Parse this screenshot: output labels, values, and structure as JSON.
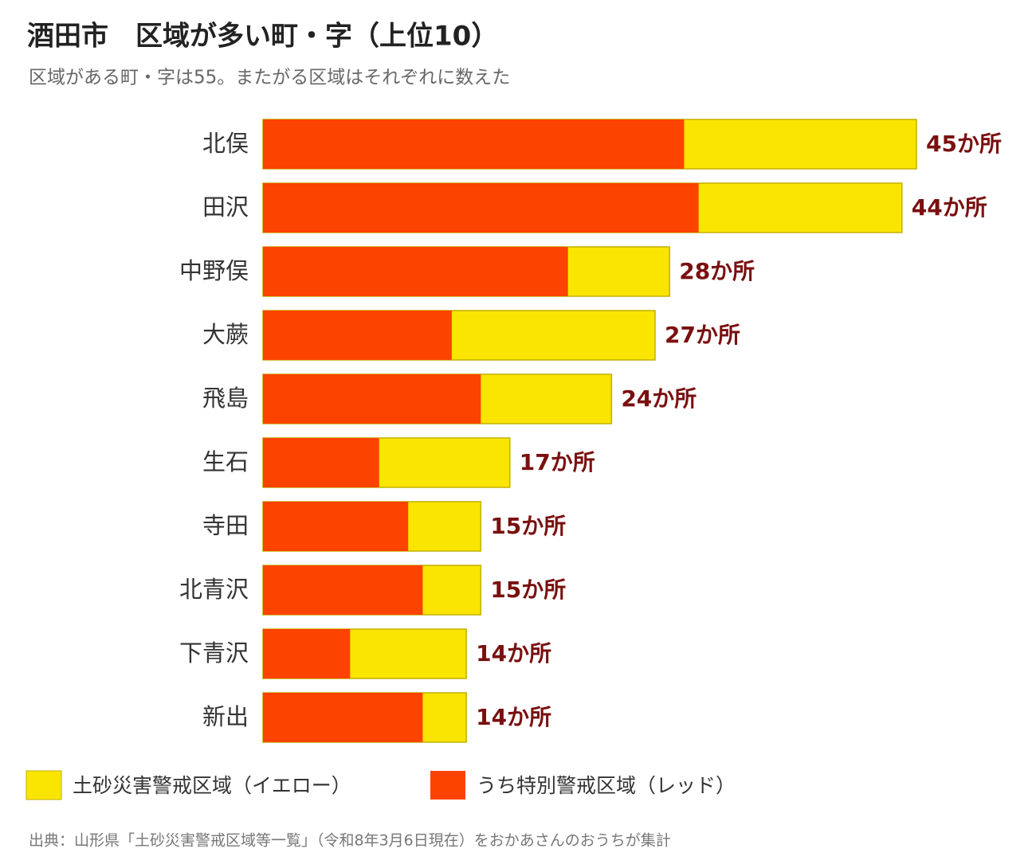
{
  "chart_data": {
    "type": "bar",
    "orientation": "horizontal",
    "title": "酒田市　区域が多い町・字（上位10）",
    "subtitle": "区域がある町・字は55。またがる区域はそれぞれに数えた",
    "source": "出典：山形県「土砂災害警戒区域等一覧」（令和8年3月6日現在）をおかあさんのおうちが集計",
    "categories": [
      "北俣",
      "田沢",
      "中野俣",
      "大蕨",
      "飛島",
      "生石",
      "寺田",
      "北青沢",
      "下青沢",
      "新出"
    ],
    "series": [
      {
        "name": "土砂災害警戒区域（イエロー）",
        "color": "#fae500",
        "values": [
          45,
          44,
          28,
          27,
          24,
          17,
          15,
          15,
          14,
          14
        ],
        "value_labels": [
          "45か所",
          "44か所",
          "28か所",
          "27か所",
          "24か所",
          "17か所",
          "15か所",
          "15か所",
          "14か所",
          "14か所"
        ]
      },
      {
        "name": "うち特別警戒区域（レッド）",
        "color": "#fc4300",
        "values": [
          29,
          30,
          21,
          13,
          15,
          8,
          10,
          11,
          6,
          11
        ]
      }
    ]
  }
}
